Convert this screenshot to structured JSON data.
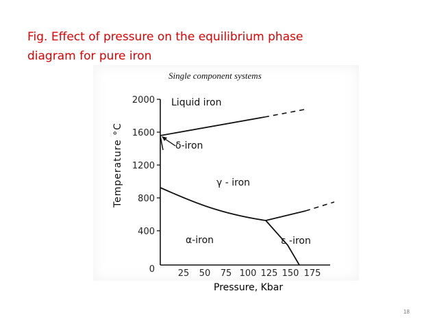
{
  "slide": {
    "title_line1": "Fig. Effect of pressure on the equilibrium phase",
    "title_line2": "diagram for pure iron",
    "title_color": "#e00000",
    "page_number": "18"
  },
  "figure": {
    "header": "Single component systems",
    "y_axis_title": "Temperature °C",
    "x_axis_label": "Pressure, Kbar",
    "y_ticks": [
      "2000",
      "1600",
      "1200",
      "800",
      "400",
      "0"
    ],
    "x_ticks": [
      "25",
      "50",
      "75",
      "100",
      "125",
      "150",
      "175"
    ],
    "regions": {
      "liquid": "Liquid iron",
      "delta": "δ-iron",
      "gamma": "γ - iron",
      "alpha": "α-iron",
      "epsilon": "ε -iron"
    }
  }
}
